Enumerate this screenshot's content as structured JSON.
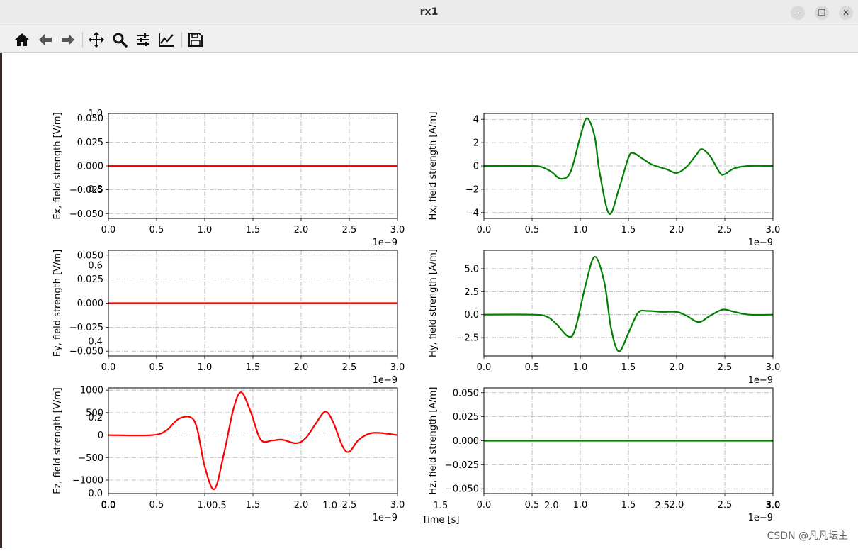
{
  "window": {
    "title": "rx1"
  },
  "toolbar": {
    "icons": [
      "home-icon",
      "back-icon",
      "forward-icon",
      "pan-icon",
      "zoom-icon",
      "configure-subplots-icon",
      "edit-axis-icon",
      "save-icon"
    ]
  },
  "watermark": "CSDN @凡凡坛主",
  "colors": {
    "e_field": "#ff0000",
    "h_field": "#008000"
  },
  "ghost_axes": {
    "ytick_labels": [
      "1.0",
      "0.8",
      "0.6",
      "0.4",
      "0.2",
      "0.0"
    ],
    "xtick_labels": [
      "0.0",
      "0.5",
      "1.0",
      "1.5",
      "2.0",
      "2.5",
      "3.0"
    ],
    "xlabel": "Time [s]"
  },
  "chart_data": [
    {
      "id": "ex",
      "type": "line",
      "ylabel": "Ex, field strength [V/m]",
      "color": "#ff0000",
      "xlim": [
        0,
        3e-09
      ],
      "ylim": [
        -0.055,
        0.055
      ],
      "xticks": [
        "0.0",
        "0.5",
        "1.0",
        "1.5",
        "2.0",
        "2.5",
        "3.0"
      ],
      "xticks_values": [
        0,
        5e-10,
        1e-09,
        1.5e-09,
        2e-09,
        2.5e-09,
        3e-09
      ],
      "yticks": [
        "0.050",
        "0.025",
        "0.000",
        "−0.025",
        "−0.050"
      ],
      "yticks_values": [
        0.05,
        0.025,
        0,
        -0.025,
        -0.05
      ],
      "offset_text": "1e−9",
      "grid": true,
      "x": [
        0,
        3e-09
      ],
      "y": [
        0,
        0
      ]
    },
    {
      "id": "hx",
      "type": "line",
      "ylabel": "Hx, field strength [A/m]",
      "color": "#008000",
      "xlim": [
        0,
        3e-09
      ],
      "ylim": [
        -4.5,
        4.5
      ],
      "xticks": [
        "0.0",
        "0.5",
        "1.0",
        "1.5",
        "2.0",
        "2.5",
        "3.0"
      ],
      "xticks_values": [
        0,
        5e-10,
        1e-09,
        1.5e-09,
        2e-09,
        2.5e-09,
        3e-09
      ],
      "yticks": [
        "4",
        "2",
        "0",
        "−2",
        "−4"
      ],
      "yticks_values": [
        4,
        2,
        0,
        -2,
        -4
      ],
      "offset_text": "1e−9",
      "grid": true,
      "x": [
        0,
        5e-10,
        6e-10,
        7e-10,
        8e-10,
        9e-10,
        1e-09,
        1.07e-09,
        1.15e-09,
        1.2e-09,
        1.3e-09,
        1.4e-09,
        1.5e-09,
        1.55e-09,
        1.65e-09,
        1.75e-09,
        1.9e-09,
        2e-09,
        2.1e-09,
        2.2e-09,
        2.26e-09,
        2.35e-09,
        2.45e-09,
        2.5e-09,
        2.6e-09,
        2.75e-09,
        3e-09
      ],
      "y": [
        0,
        0,
        -0.1,
        -0.5,
        -1.1,
        -0.5,
        2.5,
        4.1,
        2.5,
        -0.5,
        -4.1,
        -2.0,
        0.7,
        1.1,
        0.6,
        0.1,
        -0.3,
        -0.6,
        -0.1,
        0.9,
        1.45,
        0.8,
        -0.6,
        -0.7,
        -0.2,
        0,
        0
      ]
    },
    {
      "id": "ey",
      "type": "line",
      "ylabel": "Ey, field strength [V/m]",
      "color": "#ff0000",
      "xlim": [
        0,
        3e-09
      ],
      "ylim": [
        -0.055,
        0.055
      ],
      "xticks": [
        "0.0",
        "0.5",
        "1.0",
        "1.5",
        "2.0",
        "2.5",
        "3.0"
      ],
      "xticks_values": [
        0,
        5e-10,
        1e-09,
        1.5e-09,
        2e-09,
        2.5e-09,
        3e-09
      ],
      "yticks": [
        "0.050",
        "0.025",
        "0.000",
        "−0.025",
        "−0.050"
      ],
      "yticks_values": [
        0.05,
        0.025,
        0,
        -0.025,
        -0.05
      ],
      "offset_text": "1e−9",
      "grid": true,
      "x": [
        0,
        3e-09
      ],
      "y": [
        0,
        0
      ]
    },
    {
      "id": "hy",
      "type": "line",
      "ylabel": "Hy, field strength [A/m]",
      "color": "#008000",
      "xlim": [
        0,
        3e-09
      ],
      "ylim": [
        -4.5,
        7.0
      ],
      "xticks": [
        "0.0",
        "0.5",
        "1.0",
        "1.5",
        "2.0",
        "2.5",
        "3.0"
      ],
      "xticks_values": [
        0,
        5e-10,
        1e-09,
        1.5e-09,
        2e-09,
        2.5e-09,
        3e-09
      ],
      "yticks": [
        "5.0",
        "2.5",
        "0.0",
        "−2.5"
      ],
      "yticks_values": [
        5,
        2.5,
        0,
        -2.5
      ],
      "offset_text": "1e−9",
      "grid": true,
      "x": [
        0,
        5e-10,
        6.5e-10,
        7.5e-10,
        8.8e-10,
        9.5e-10,
        1.05e-09,
        1.15e-09,
        1.25e-09,
        1.32e-09,
        1.4e-09,
        1.5e-09,
        1.6e-09,
        1.7e-09,
        1.85e-09,
        2e-09,
        2.1e-09,
        2.23e-09,
        2.35e-09,
        2.48e-09,
        2.6e-09,
        2.75e-09,
        3e-09
      ],
      "y": [
        0,
        0,
        -0.2,
        -1.0,
        -2.4,
        -1.5,
        3.0,
        6.3,
        3.5,
        -1.5,
        -4.0,
        -2.0,
        0.2,
        0.4,
        0.3,
        0.3,
        -0.1,
        -0.8,
        -0.1,
        0.55,
        0.3,
        0,
        0
      ]
    },
    {
      "id": "ez",
      "type": "line",
      "ylabel": "Ez, field strength [V/m]",
      "color": "#ff0000",
      "xlim": [
        0,
        3e-09
      ],
      "ylim": [
        -1300,
        1050
      ],
      "xticks": [
        "0.0",
        "0.5",
        "1.0",
        "1.5",
        "2.0",
        "2.5",
        "3.0"
      ],
      "xticks_values": [
        0,
        5e-10,
        1e-09,
        1.5e-09,
        2e-09,
        2.5e-09,
        3e-09
      ],
      "yticks": [
        "1000",
        "500",
        "0",
        "−500",
        "−1000"
      ],
      "yticks_values": [
        1000,
        500,
        0,
        -500,
        -1000
      ],
      "offset_text": "1e−9",
      "grid": true,
      "x": [
        0,
        4.5e-10,
        6e-10,
        7.2e-10,
        8.5e-10,
        9.2e-10,
        1e-09,
        1.1e-09,
        1.2e-09,
        1.3e-09,
        1.38e-09,
        1.48e-09,
        1.58e-09,
        1.7e-09,
        1.8e-09,
        1.95e-09,
        2.05e-09,
        2.15e-09,
        2.25e-09,
        2.33e-09,
        2.43e-09,
        2.5e-09,
        2.6e-09,
        2.75e-09,
        3e-09
      ],
      "y": [
        0,
        0,
        100,
        350,
        400,
        150,
        -700,
        -1200,
        -400,
        600,
        950,
        500,
        -100,
        -120,
        -100,
        -180,
        -60,
        250,
        520,
        300,
        -250,
        -370,
        -100,
        50,
        0
      ]
    },
    {
      "id": "hz",
      "type": "line",
      "ylabel": "Hz, field strength [A/m]",
      "color": "#008000",
      "xlim": [
        0,
        3e-09
      ],
      "ylim": [
        -0.055,
        0.055
      ],
      "xticks": [
        "0.0",
        "0.5",
        "1.0",
        "1.5",
        "2.0",
        "2.5",
        "3.0"
      ],
      "xticks_values": [
        0,
        5e-10,
        1e-09,
        1.5e-09,
        2e-09,
        2.5e-09,
        3e-09
      ],
      "yticks": [
        "0.050",
        "0.025",
        "0.000",
        "−0.025",
        "−0.050"
      ],
      "yticks_values": [
        0.05,
        0.025,
        0,
        -0.025,
        -0.05
      ],
      "offset_text": "1e−9",
      "grid": true,
      "x": [
        0,
        3e-09
      ],
      "y": [
        0,
        0
      ]
    }
  ]
}
